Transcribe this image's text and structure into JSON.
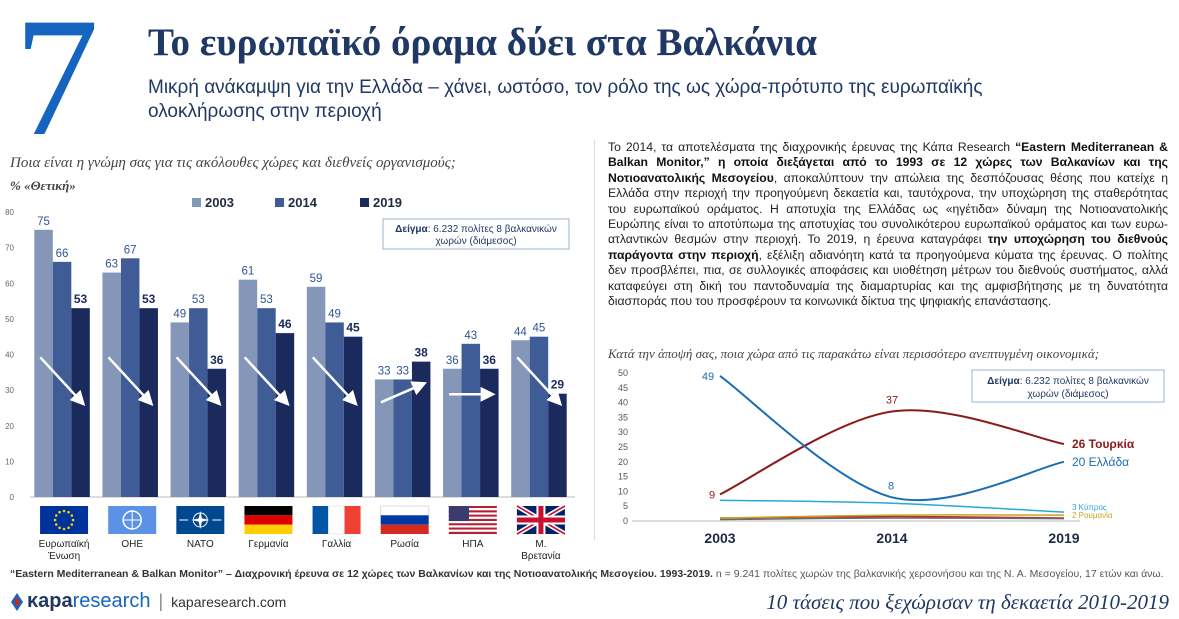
{
  "header": {
    "number": "7",
    "title": "Το ευρωπαϊκό όραμα δύει στα Βαλκάνια",
    "subtitle": "Μικρή ανάκαμψη για την Ελλάδα – χάνει, ωστόσο, τον ρόλο της ως χώρα-πρότυπο της ευρωπαϊκής ολοκλήρωσης στην περιοχή"
  },
  "left_question": "Ποια είναι η γνώμη σας για τις ακόλουθες χώρες και διεθνείς οργανισμούς;",
  "left_metric": "% «Θετική»",
  "paragraph": {
    "p1": "Το 2014, τα αποτελέσματα της διαχρονικής έρευνας της Κάπα Research ",
    "b1": "“Eastern Mediterranean & Balkan Monitor,” η οποία διεξάγεται από το 1993 σε 12 χώρες των Βαλκανίων και της Νοτιοανατολικής Μεσογείου",
    "p2": ", αποκαλύπτουν την απώλεια της δεσπόζουσας θέσης που κατείχε η Ελλάδα στην περιοχή την προηγούμενη δεκαετία και, ταυτόχρονα, την υποχώρηση της σταθερότητας του ευρωπαϊκού οράματος. Η αποτυχία της Ελλάδας ως «ηγέτιδα» δύναμη της Νοτιοανατολικής Ευρώπης είναι το αποτύπωμα της αποτυχίας του συνολικότερου ευρωπαϊκού οράματος και των ευρω-ατλαντικών θεσμών στην περιοχή.  Το 2019, η έρευνα καταγράφει ",
    "b2": "την υποχώρηση του διεθνούς παράγοντα στην περιοχή",
    "p3": ", εξέλιξη αδιανόητη κατά τα προηγούμενα κύματα της έρευνας. Ο πολίτης δεν προσβλέπει, πια, σε συλλογικές αποφάσεις και υιοθέτηση μέτρων του διεθνούς συστήματος, αλλά καταφεύγει στη δική του παντοδυναμία της διαμαρτυρίας και της αμφισβήτησης με τη δυνατότητα διασποράς που του προσφέρουν τα κοινωνικά δίκτυα της ψηφιακής επανάστασης."
  },
  "right_question": "Κατά την άποψή σας, ποια χώρα από τις παρακάτω είναι περισσότερο ανεπτυγμένη οικονομικά;",
  "footnote": {
    "bold": "“Eastern Mediterranean & Balkan Monitor” – Διαχρονική έρευνα σε 12 χώρες των Βαλκανίων και της Νοτιοανατολικής Μεσογείου. 1993-2019.",
    "rest": " n = 9.241 πολίτες χωρών της βαλκανικής χερσονήσου και της Ν. Α. Μεσογείου, 17 ετών και άνω."
  },
  "footer": {
    "logo_kapa": "κapa",
    "logo_research": "research",
    "separator": "|",
    "url": "kaparesearch.com",
    "tagline": "10 τάσεις που ξεχώρισαν τη δεκαετία 2010-2019"
  },
  "colors": {
    "bar_2003": "#8497b8",
    "bar_2014": "#3f5c96",
    "bar_2019": "#1b2a5c",
    "line_turkey": "#8b1a1a",
    "line_greece": "#1a6eb3",
    "line_cyprus": "#29a8d6",
    "line_romania": "#c9a227",
    "title_blue": "#1565c0",
    "navy": "#1f3864"
  },
  "chart_data": [
    {
      "type": "bar",
      "ylim": [
        0,
        80
      ],
      "yticks": [
        0,
        10,
        20,
        30,
        40,
        50,
        60,
        70,
        80
      ],
      "sample_note": {
        "bold": "Δείγμα",
        "text": ": 6.232 πολίτες 8 βαλκανικών χωρών (διάμεσος)"
      },
      "categories": [
        "Ευρωπαϊκή Ένωση",
        "ΟΗΕ",
        "ΝΑΤΟ",
        "Γερμανία",
        "Γαλλία",
        "Ρωσία",
        "ΗΠΑ",
        "Μ. Βρετανία"
      ],
      "flag_icons": [
        "eu-flag-icon",
        "un-flag-icon",
        "nato-flag-icon",
        "germany-flag-icon",
        "france-flag-icon",
        "russia-flag-icon",
        "usa-flag-icon",
        "uk-flag-icon"
      ],
      "series": [
        {
          "name": "2003",
          "values": [
            75,
            63,
            49,
            61,
            59,
            33,
            36,
            44
          ]
        },
        {
          "name": "2014",
          "values": [
            66,
            67,
            53,
            53,
            49,
            33,
            43,
            45
          ]
        },
        {
          "name": "2019",
          "values": [
            53,
            53,
            36,
            46,
            45,
            38,
            36,
            29
          ]
        }
      ],
      "trend_arrows": [
        "down",
        "down",
        "down",
        "down",
        "down",
        "up",
        "flat",
        "down"
      ],
      "legend": "top-center"
    },
    {
      "type": "line",
      "x": [
        "2003",
        "2014",
        "2019"
      ],
      "ylim": [
        0,
        50
      ],
      "yticks": [
        0,
        5,
        10,
        15,
        20,
        25,
        30,
        35,
        40,
        45,
        50
      ],
      "sample_note": {
        "bold": "Δείγμα",
        "text": ": 6.232 πολίτες 8 βαλκανικών χωρών (διάμεσος)"
      },
      "series": [
        {
          "name": "Τουρκία",
          "values": [
            9,
            37,
            26
          ]
        },
        {
          "name": "Ελλάδα",
          "values": [
            49,
            8,
            20
          ]
        },
        {
          "name": "Κύπρος",
          "values": [
            7,
            6,
            3
          ]
        },
        {
          "name": "Ρουμανία",
          "values": [
            1,
            2,
            2
          ]
        }
      ],
      "extra_series": [
        {
          "values": [
            1,
            1.5,
            1
          ]
        },
        {
          "values": [
            0.5,
            1,
            0.8
          ]
        }
      ]
    }
  ]
}
